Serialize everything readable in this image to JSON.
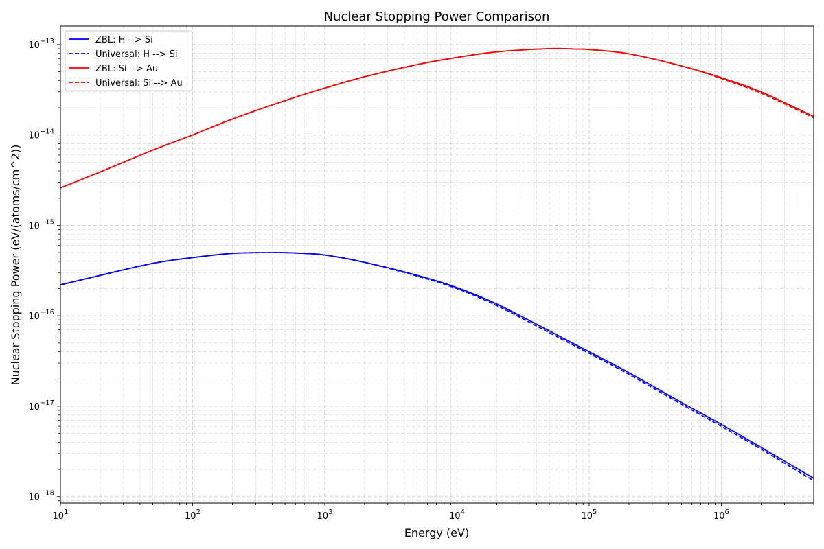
{
  "chart_data": {
    "type": "line",
    "title": "Nuclear Stopping Power Comparison",
    "xlabel": "Energy (eV)",
    "ylabel": "Nuclear Stopping Power (eV/(atoms/cm^2))",
    "xscale": "log",
    "yscale": "log",
    "xlim": [
      10,
      5000000
    ],
    "ylim": [
      8.5e-19,
      1.6e-13
    ],
    "grid": true,
    "legend_position": "top-left",
    "x_ticks": [
      {
        "value": 10,
        "base": "10",
        "exp": "1"
      },
      {
        "value": 100,
        "base": "10",
        "exp": "2"
      },
      {
        "value": 1000,
        "base": "10",
        "exp": "3"
      },
      {
        "value": 10000,
        "base": "10",
        "exp": "4"
      },
      {
        "value": 100000,
        "base": "10",
        "exp": "5"
      },
      {
        "value": 1000000,
        "base": "10",
        "exp": "6"
      }
    ],
    "y_ticks": [
      {
        "value": 1e-18,
        "base": "10",
        "exp": "−18"
      },
      {
        "value": 1e-17,
        "base": "10",
        "exp": "−17"
      },
      {
        "value": 1e-16,
        "base": "10",
        "exp": "−16"
      },
      {
        "value": 1e-15,
        "base": "10",
        "exp": "−15"
      },
      {
        "value": 1e-14,
        "base": "10",
        "exp": "−14"
      },
      {
        "value": 1e-13,
        "base": "10",
        "exp": "−13"
      }
    ],
    "series": [
      {
        "name": "ZBL: H --> Si",
        "color": "#0000ff",
        "dash": "solid",
        "x": [
          10,
          20,
          50,
          100,
          200,
          400,
          600,
          1000,
          2000,
          5000,
          10000,
          20000,
          50000,
          100000,
          200000,
          500000,
          1000000,
          2000000,
          5000000
        ],
        "y": [
          2.2e-16,
          2.8e-16,
          3.8e-16,
          4.4e-16,
          4.9e-16,
          5e-16,
          4.95e-16,
          4.7e-16,
          3.9e-16,
          2.8e-16,
          2.05e-16,
          1.35e-16,
          6.8e-17,
          4e-17,
          2.35e-17,
          1.1e-17,
          6.3e-18,
          3.5e-18,
          1.6e-18
        ]
      },
      {
        "name": "Universal: H --> Si",
        "color": "#0000ff",
        "dash": "dashed",
        "x": [
          10,
          20,
          50,
          100,
          200,
          400,
          600,
          1000,
          2000,
          5000,
          10000,
          20000,
          50000,
          100000,
          200000,
          500000,
          1000000,
          2000000,
          5000000
        ],
        "y": [
          2.2e-16,
          2.8e-16,
          3.8e-16,
          4.4e-16,
          4.9e-16,
          5e-16,
          4.95e-16,
          4.7e-16,
          3.9e-16,
          2.75e-16,
          2e-16,
          1.3e-16,
          6.5e-17,
          3.85e-17,
          2.25e-17,
          1.05e-17,
          6e-18,
          3.35e-18,
          1.5e-18
        ]
      },
      {
        "name": "ZBL: Si --> Au",
        "color": "#ff0000",
        "dash": "solid",
        "x": [
          10,
          20,
          50,
          100,
          200,
          500,
          1000,
          2000,
          5000,
          10000,
          20000,
          50000,
          80000,
          100000,
          200000,
          500000,
          1000000,
          2000000,
          5000000
        ],
        "y": [
          2.6e-15,
          3.9e-15,
          6.8e-15,
          1e-14,
          1.5e-14,
          2.4e-14,
          3.3e-14,
          4.4e-14,
          6e-14,
          7.2e-14,
          8.3e-14,
          9e-14,
          8.9e-14,
          8.8e-14,
          7.9e-14,
          5.8e-14,
          4.3e-14,
          3e-14,
          1.6e-14
        ]
      },
      {
        "name": "Universal: Si --> Au",
        "color": "#ff0000",
        "dash": "dashed",
        "x": [
          10,
          20,
          50,
          100,
          200,
          500,
          1000,
          2000,
          5000,
          10000,
          20000,
          50000,
          80000,
          100000,
          200000,
          500000,
          1000000,
          2000000,
          5000000
        ],
        "y": [
          2.6e-15,
          3.9e-15,
          6.8e-15,
          1e-14,
          1.5e-14,
          2.4e-14,
          3.3e-14,
          4.4e-14,
          6e-14,
          7.2e-14,
          8.3e-14,
          9e-14,
          8.9e-14,
          8.8e-14,
          7.9e-14,
          5.8e-14,
          4.2e-14,
          2.9e-14,
          1.55e-14
        ]
      }
    ]
  }
}
